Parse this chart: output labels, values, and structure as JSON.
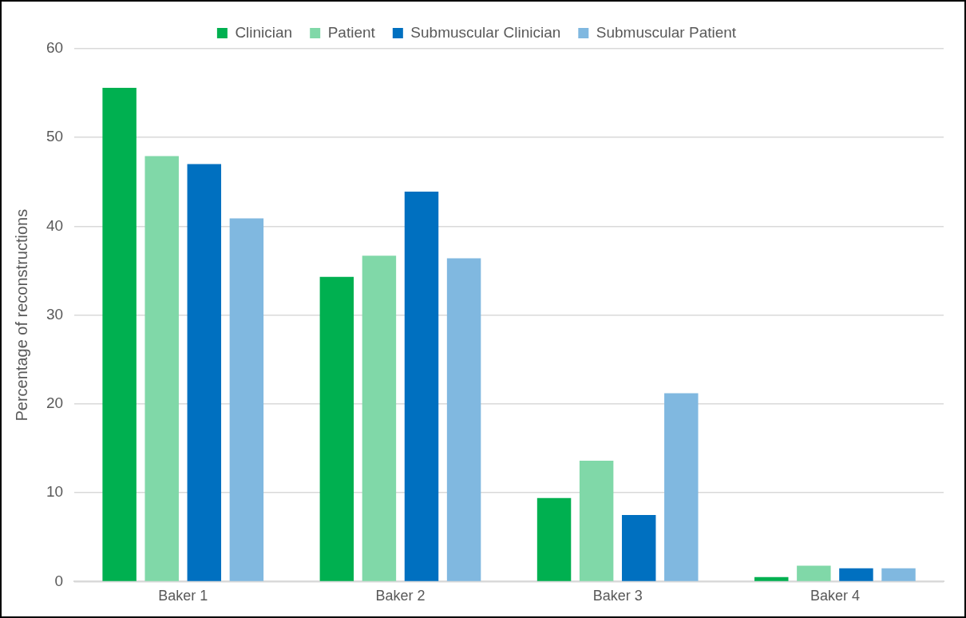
{
  "chart_data": {
    "type": "bar",
    "ylabel": "Percentage of reconstructions",
    "categories": [
      "Baker 1",
      "Baker 2",
      "Baker 3",
      "Baker 4"
    ],
    "series": [
      {
        "name": "Clinician",
        "color": "#00b050",
        "values": [
          55.6,
          34.3,
          9.4,
          0.5
        ]
      },
      {
        "name": "Patient",
        "color": "#80d8a8",
        "values": [
          47.9,
          36.7,
          13.6,
          1.8
        ]
      },
      {
        "name": "Submuscular Clinician",
        "color": "#0070c0",
        "values": [
          47.0,
          43.9,
          7.5,
          1.5
        ]
      },
      {
        "name": "Submuscular Patient",
        "color": "#80b8e0",
        "values": [
          40.9,
          36.4,
          21.2,
          1.5
        ]
      }
    ],
    "ylim": [
      0,
      60
    ],
    "yticks": [
      0,
      10,
      20,
      30,
      40,
      50,
      60
    ],
    "grid": "y",
    "legend": "top"
  }
}
